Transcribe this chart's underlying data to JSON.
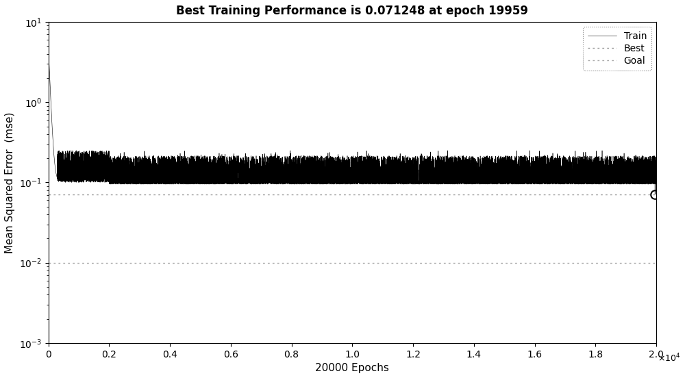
{
  "title": "Best Training Performance is 0.071248 at epoch 19959",
  "xlabel": "20000 Epochs",
  "ylabel": "Mean Squared Error  (mse)",
  "ylim_log": [
    -3,
    1
  ],
  "xlim": [
    0,
    20000
  ],
  "best_value": 0.071248,
  "best_epoch": 19959,
  "goal_value": 0.01,
  "train_color": "#000000",
  "best_color": "#999999",
  "goal_color": "#aaaaaa",
  "legend_labels": [
    "Train",
    "Best",
    "Goal"
  ],
  "title_fontsize": 12,
  "axis_fontsize": 11,
  "tick_fontsize": 10,
  "background_color": "#ffffff",
  "n_epochs": 20000
}
